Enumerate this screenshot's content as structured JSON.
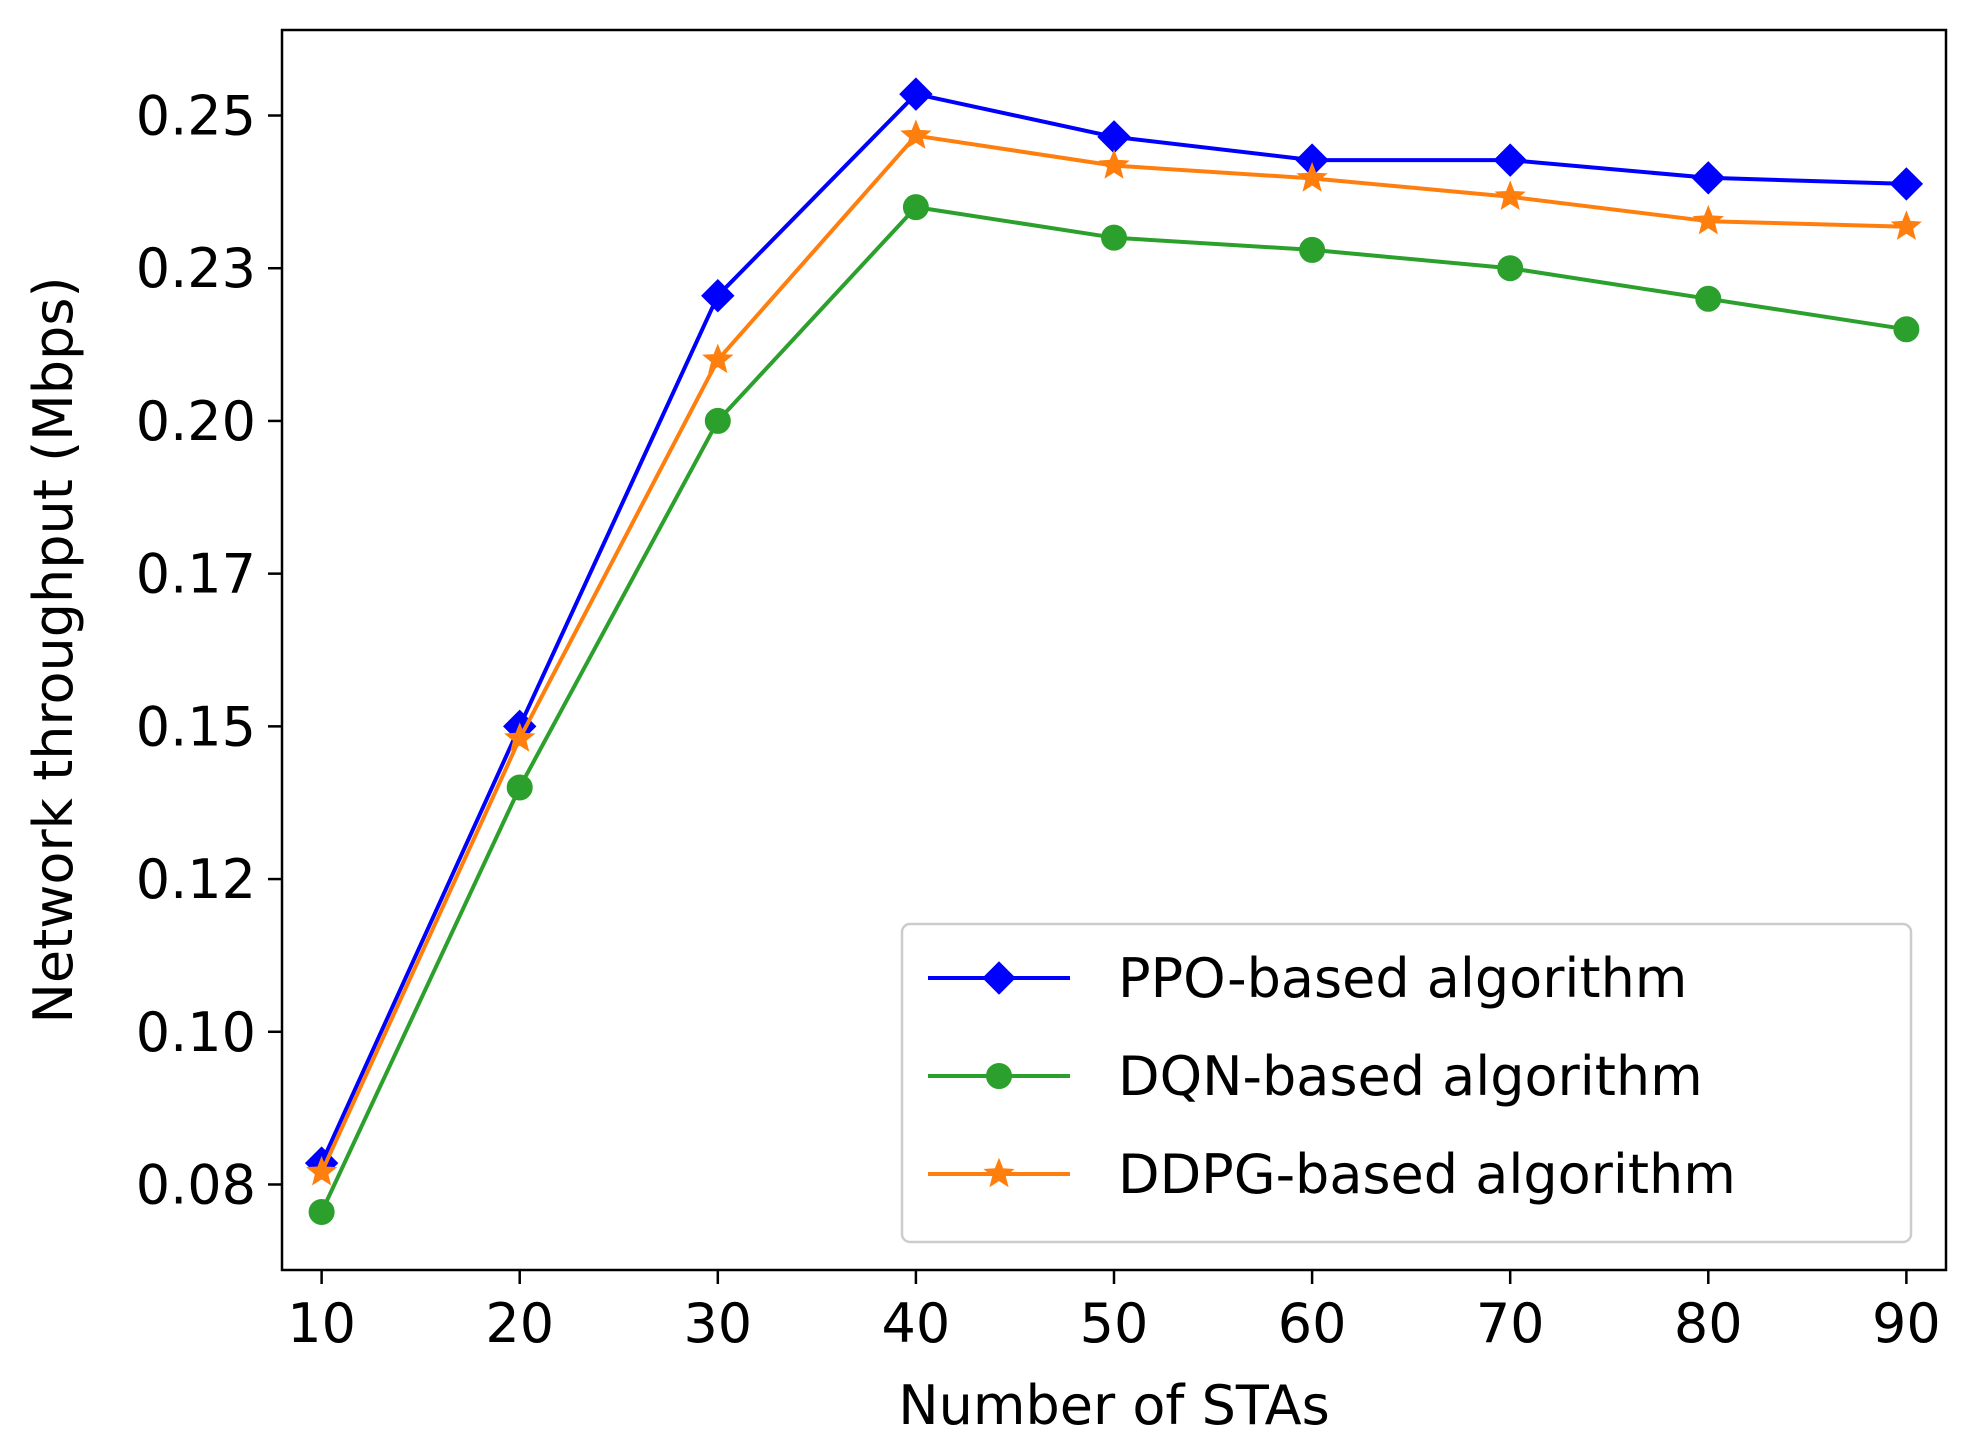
{
  "chart_data": {
    "type": "line",
    "title": "",
    "xlabel": "Number of STAs",
    "ylabel": "Network throughput (Mbps)",
    "x": [
      10,
      20,
      30,
      40,
      50,
      60,
      70,
      80,
      90
    ],
    "xticks": [
      10,
      20,
      30,
      40,
      50,
      60,
      70,
      80,
      90
    ],
    "xtick_labels": [
      "10",
      "20",
      "30",
      "40",
      "50",
      "60",
      "70",
      "80",
      "90"
    ],
    "yticks": [
      0.075,
      0.1,
      0.125,
      0.15,
      0.175,
      0.2,
      0.225,
      0.25
    ],
    "ytick_labels": [
      "0.08",
      "0.10",
      "0.12",
      "0.15",
      "0.17",
      "0.20",
      "0.23",
      "0.25"
    ],
    "xlim": [
      8,
      92
    ],
    "ylim": [
      0.061,
      0.264
    ],
    "grid": false,
    "legend_position": "bottom-right",
    "series": [
      {
        "name": "PPO-based algorithm",
        "color": "#0000ff",
        "marker": "diamond",
        "values": [
          0.0785,
          0.15,
          0.2205,
          0.2535,
          0.2465,
          0.2427,
          0.2427,
          0.2398,
          0.2388
        ]
      },
      {
        "name": "DQN-based algorithm",
        "color": "#2ca02c",
        "marker": "circle",
        "values": [
          0.0705,
          0.14,
          0.2,
          0.235,
          0.23,
          0.228,
          0.225,
          0.22,
          0.215
        ]
      },
      {
        "name": "DDPG-based algorithm",
        "color": "#ff7f0e",
        "marker": "star",
        "values": [
          0.077,
          0.148,
          0.21,
          0.2467,
          0.2418,
          0.2397,
          0.2367,
          0.2327,
          0.2318
        ]
      }
    ]
  }
}
